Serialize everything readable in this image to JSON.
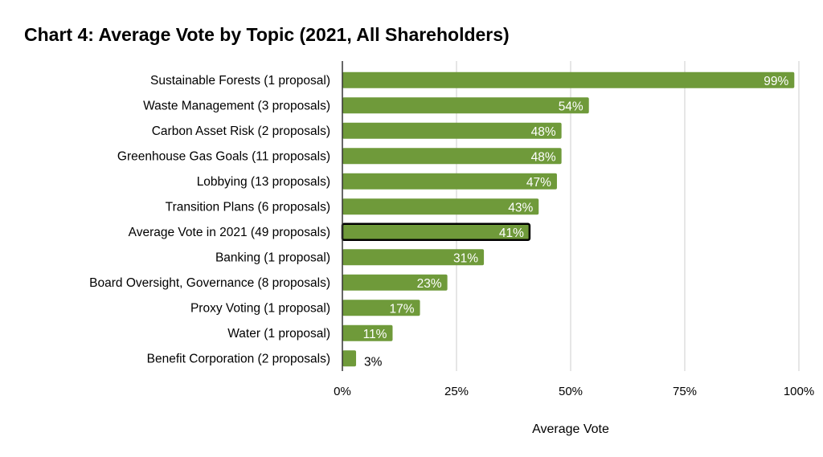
{
  "chart_data": {
    "type": "bar",
    "orientation": "horizontal",
    "title": "Chart 4: Average Vote by Topic (2021, All Shareholders)",
    "xlabel": "Average Vote",
    "ylabel": "",
    "xlim": [
      0,
      100
    ],
    "xticks": [
      "0%",
      "25%",
      "50%",
      "75%",
      "100%"
    ],
    "grid": "vertical",
    "bar_color": "#6f9a3a",
    "highlight_outline_color": "#000000",
    "categories": [
      "Sustainable Forests (1 proposal)",
      "Waste Management (3 proposals)",
      "Carbon Asset Risk (2 proposals)",
      "Greenhouse Gas Goals (11 proposals)",
      "Lobbying (13 proposals)",
      "Transition Plans (6 proposals)",
      "Average Vote in 2021 (49 proposals)",
      "Banking (1 proposal)",
      "Board Oversight, Governance (8 proposals)",
      "Proxy Voting (1 proposal)",
      "Water (1 proposal)",
      "Benefit Corporation (2 proposals)"
    ],
    "values": [
      99,
      54,
      48,
      48,
      47,
      43,
      41,
      31,
      23,
      17,
      11,
      3
    ],
    "data_labels": [
      "99%",
      "54%",
      "48%",
      "48%",
      "47%",
      "43%",
      "41%",
      "31%",
      "23%",
      "17%",
      "11%",
      "3%"
    ],
    "highlighted_category": "Average Vote in 2021 (49 proposals)"
  }
}
